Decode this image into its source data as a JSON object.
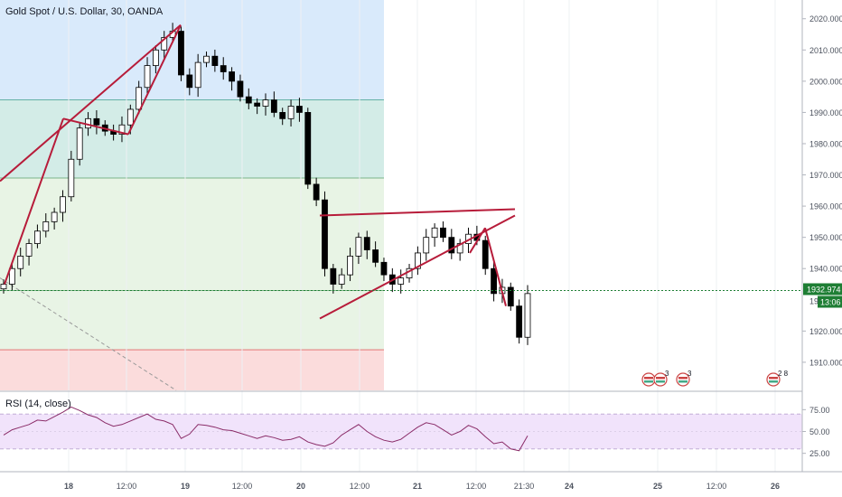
{
  "header": {
    "title": "Gold Spot / U.S. Dollar, 30, OANDA"
  },
  "rsi": {
    "label": "RSI (14, close)"
  },
  "price_axis": {
    "ticks": [
      "2020.000",
      "2010.000",
      "2000.000",
      "1990.000",
      "1980.000",
      "1970.000",
      "1960.000",
      "1950.000",
      "1940.000",
      "1920.000",
      "1910.000"
    ],
    "last_price": "1932.974",
    "countdown": "13:06",
    "hidden_label": "19"
  },
  "rsi_axis": {
    "ticks": [
      "75.00",
      "50.00",
      "25.00"
    ]
  },
  "time_axis": {
    "ticks": [
      "18",
      "12:00",
      "19",
      "12:00",
      "20",
      "12:00",
      "21",
      "12:00",
      "21:30",
      "24",
      "25",
      "12:00",
      "26"
    ]
  },
  "event_flags": {
    "group1_count": "3",
    "group2_count": "3",
    "group3_counts": "2 8"
  },
  "colors": {
    "up": "#ffffff",
    "down": "#000000",
    "pattern_line": "#b71c3a",
    "fib_blue": "#d9eafb",
    "fib_teal": "#d3ece7",
    "fib_green": "#e8f4e5",
    "fib_red": "#fbdcdc",
    "price_badge": "#1e7e34",
    "rsi_line": "#8a2c68",
    "rsi_band": "#f1e3fb"
  },
  "chart_data": {
    "type": "candlestick",
    "title": "Gold Spot / U.S. Dollar, 30, OANDA",
    "ylim": [
      1901,
      2026
    ],
    "x_labels": [
      "18",
      "12:00",
      "19",
      "12:00",
      "20",
      "12:00",
      "21",
      "12:00",
      "21:30",
      "24",
      "25",
      "12:00",
      "26"
    ],
    "last_price": 1932.974,
    "price_path": [
      1935,
      1940,
      1944,
      1948,
      1952,
      1955,
      1958,
      1963,
      1975,
      1985,
      1988,
      1986,
      1984,
      1983,
      1986,
      1991,
      1998,
      2005,
      2010,
      2014,
      2016,
      2002,
      1998,
      2006,
      2008,
      2005,
      2003,
      2000,
      1995,
      1993,
      1992,
      1994,
      1990,
      1988,
      1992,
      1990,
      1967,
      1962,
      1940,
      1935,
      1938,
      1944,
      1950,
      1946,
      1942,
      1938,
      1935,
      1937,
      1940,
      1945,
      1950,
      1953,
      1950,
      1945,
      1948,
      1951,
      1949,
      1940,
      1932,
      1934,
      1928,
      1918,
      1932
    ],
    "fib_levels": [
      1994,
      1969,
      1933,
      1914
    ],
    "annotations": {
      "pattern_lines": [
        "rising wedge to 2018",
        "descending triangle top 1958",
        "ascending support line"
      ]
    },
    "rsi": {
      "name": "RSI (14, close)",
      "bands": [
        70,
        30
      ],
      "ticks": [
        75,
        50,
        25
      ],
      "values": [
        46,
        52,
        55,
        58,
        63,
        62,
        67,
        72,
        78,
        74,
        69,
        66,
        60,
        56,
        58,
        62,
        66,
        70,
        64,
        62,
        58,
        42,
        47,
        58,
        57,
        55,
        52,
        51,
        48,
        45,
        42,
        45,
        43,
        40,
        41,
        44,
        38,
        35,
        33,
        37,
        46,
        52,
        58,
        50,
        44,
        40,
        38,
        41,
        48,
        55,
        60,
        58,
        52,
        46,
        50,
        57,
        53,
        44,
        36,
        38,
        30,
        28,
        45
      ]
    },
    "ylabel": "",
    "xlabel": ""
  }
}
